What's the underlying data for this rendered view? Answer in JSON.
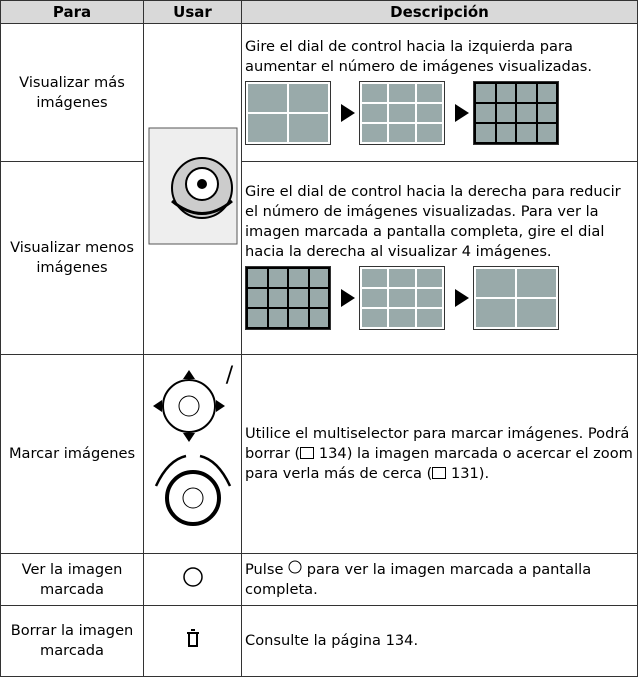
{
  "table": {
    "header": [
      "Para",
      "Usar",
      "Descripción"
    ],
    "rows": [
      {
        "para": "Visualizar más imágenes",
        "desc": [
          "Gire el dial de control hacia la izquierda para aumentar el número de imágenes visualizadas."
        ]
      },
      {
        "para": "Visualizar menos imágenes",
        "desc": [
          "Gire el dial de control hacia la derecha para reducir el número de imágenes visualizadas. Para ver la imagen marcada a pantalla completa, gire el dial hacia la derecha al visualizar 4 imágenes."
        ]
      },
      {
        "para": "Marcar imágenes",
        "usar": "/",
        "desc": [
          "Utilice el multiselector para marcar imágenes. Podrá borrar (",
          "134) la imagen marcada o acercar el zoom para verla más de cerca (",
          "131)."
        ]
      },
      {
        "para": "Ver la imagen marcada",
        "desc": [
          "Pulse",
          "para ver la imagen marcada a pantalla completa."
        ]
      },
      {
        "para": "Borrar la imagen marcada",
        "desc": [
          "Consulte la página 134."
        ]
      }
    ]
  }
}
